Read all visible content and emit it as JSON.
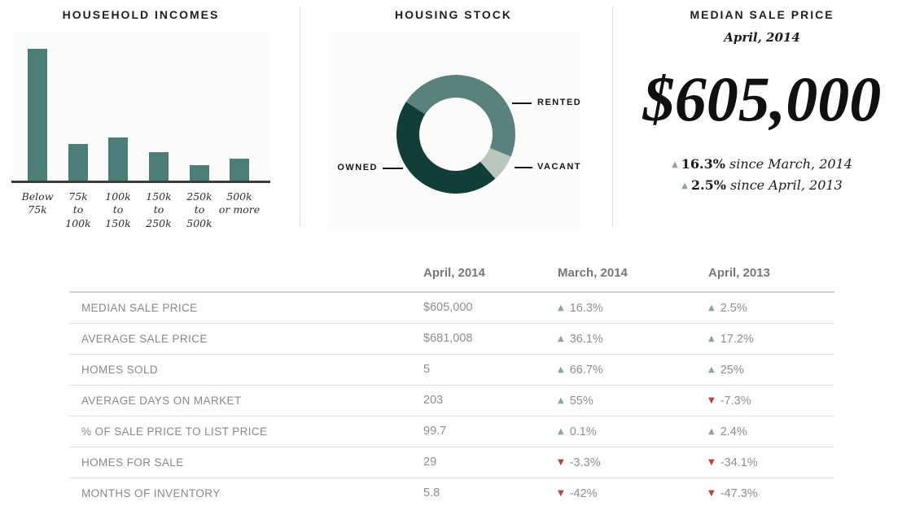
{
  "icons": {
    "up": "▲",
    "down": "▼"
  },
  "colors": {
    "bar": "#4d7d77",
    "owned": "#123e38",
    "rented": "#5a827c",
    "vacant": "#b9c7bd",
    "up_arrow": "#8ba69d",
    "down_arrow": "#b3463e",
    "panel_bg": "#fcfcfc",
    "axis": "#3c3c3c"
  },
  "panels": {
    "incomes": {
      "title": "HOUSEHOLD INCOMES"
    },
    "stock": {
      "title": "HOUSING STOCK"
    },
    "median": {
      "title": "MEDIAN SALE PRICE",
      "subtitle": "April, 2014",
      "price": "$605,000",
      "changes": [
        {
          "direction": "up",
          "value": "16.3%",
          "suffix": " since March, 2014"
        },
        {
          "direction": "up",
          "value": "2.5%",
          "suffix": " since April, 2013"
        }
      ]
    }
  },
  "chart_data": [
    {
      "type": "bar",
      "title": "HOUSEHOLD INCOMES",
      "categories": [
        [
          "Below",
          "75k"
        ],
        [
          "75k",
          "to",
          "100k"
        ],
        [
          "100k",
          "to",
          "150k"
        ],
        [
          "150k",
          "to",
          "250k"
        ],
        [
          "250k",
          "to",
          "500k"
        ],
        [
          "500k",
          "or more"
        ]
      ],
      "values": [
        47,
        13.1,
        15.4,
        10.2,
        5.5,
        7.8
      ],
      "unit": "percent (estimated, no axis labels shown)",
      "bar_color": "#4d7d77",
      "xlabel": "",
      "ylabel": "",
      "grid": false,
      "legend": false
    },
    {
      "type": "pie",
      "title": "HOUSING STOCK",
      "donut": true,
      "start_angle_clockwise_from_12": 303,
      "segments": [
        {
          "label": "RENTED",
          "value": 47,
          "color": "#5a827c",
          "label_side": "right-top"
        },
        {
          "label": "VACANT",
          "value": 7.3,
          "color": "#b9c7bd",
          "label_side": "right-bottom"
        },
        {
          "label": "OWNED",
          "value": 45.7,
          "color": "#123e38",
          "label_side": "left"
        }
      ],
      "unit": "percent (estimated from arc angles, values not labeled)"
    },
    {
      "type": "table",
      "columns": [
        "April, 2014",
        "March, 2014",
        "April, 2013"
      ],
      "rows": [
        {
          "label": "MEDIAN SALE PRICE",
          "current": "$605,000",
          "vs_prev_month": {
            "dir": "up",
            "pct": "16.3%"
          },
          "vs_prev_year": {
            "dir": "up",
            "pct": "2.5%"
          }
        },
        {
          "label": "AVERAGE SALE PRICE",
          "current": "$681,008",
          "vs_prev_month": {
            "dir": "up",
            "pct": "36.1%"
          },
          "vs_prev_year": {
            "dir": "up",
            "pct": "17.2%"
          }
        },
        {
          "label": "HOMES SOLD",
          "current": "5",
          "vs_prev_month": {
            "dir": "up",
            "pct": "66.7%"
          },
          "vs_prev_year": {
            "dir": "up",
            "pct": "25%"
          }
        },
        {
          "label": "AVERAGE DAYS ON MARKET",
          "current": "203",
          "vs_prev_month": {
            "dir": "up",
            "pct": "55%"
          },
          "vs_prev_year": {
            "dir": "down",
            "pct": "-7.3%"
          }
        },
        {
          "label": "% OF SALE PRICE TO LIST PRICE",
          "current": "99.7",
          "vs_prev_month": {
            "dir": "up",
            "pct": "0.1%"
          },
          "vs_prev_year": {
            "dir": "up",
            "pct": "2.4%"
          }
        },
        {
          "label": "HOMES FOR SALE",
          "current": "29",
          "vs_prev_month": {
            "dir": "down",
            "pct": "-3.3%"
          },
          "vs_prev_year": {
            "dir": "down",
            "pct": "-34.1%"
          }
        },
        {
          "label": "MONTHS OF INVENTORY",
          "current": "5.8",
          "vs_prev_month": {
            "dir": "down",
            "pct": "-42%"
          },
          "vs_prev_year": {
            "dir": "down",
            "pct": "-47.3%"
          }
        }
      ]
    }
  ]
}
